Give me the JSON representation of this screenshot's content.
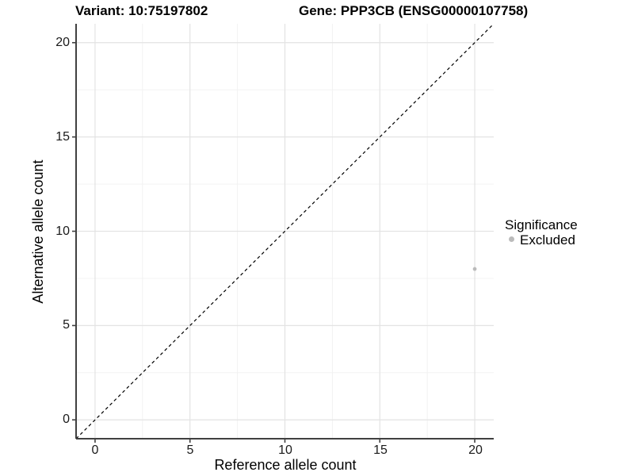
{
  "header": {
    "variant_title": "Variant: 10:75197802",
    "gene_title": "Gene: PPP3CB (ENSG00000107758)"
  },
  "chart_data": {
    "type": "scatter",
    "title": "Variant: 10:75197802  /  Gene: PPP3CB (ENSG00000107758)",
    "xlabel": "Reference allele count",
    "ylabel": "Alternative allele count",
    "xlim": [
      -1,
      21
    ],
    "ylim": [
      -1,
      21
    ],
    "x_ticks": [
      "0",
      "5",
      "10",
      "15",
      "20"
    ],
    "y_ticks": [
      "0",
      "5",
      "10",
      "15",
      "20"
    ],
    "x_tick_values": [
      0,
      5,
      10,
      15,
      20
    ],
    "y_tick_values": [
      0,
      5,
      10,
      15,
      20
    ],
    "minor_tick_values": [
      2.5,
      7.5,
      12.5,
      17.5
    ],
    "grid": "on",
    "reference_line": {
      "style": "dashed",
      "from": [
        -1,
        -1
      ],
      "to": [
        21,
        21
      ],
      "meaning": "y = x identity line"
    },
    "series": [
      {
        "name": "Excluded",
        "color": "#bbbbbb",
        "point_radius": 2.4,
        "points": [
          {
            "x": 20,
            "y": 8
          }
        ]
      }
    ],
    "legend": {
      "title": "Significance",
      "position": "right",
      "items": [
        {
          "label": "Excluded",
          "color": "#bbbbbb"
        }
      ]
    },
    "style": {
      "grid_major_color": "#e3e3e3",
      "grid_minor_color": "#f1f1f1",
      "axis_color": "#404040",
      "point_color": "#bbbbbb",
      "text_color": "#000000",
      "background": "#ffffff"
    }
  }
}
